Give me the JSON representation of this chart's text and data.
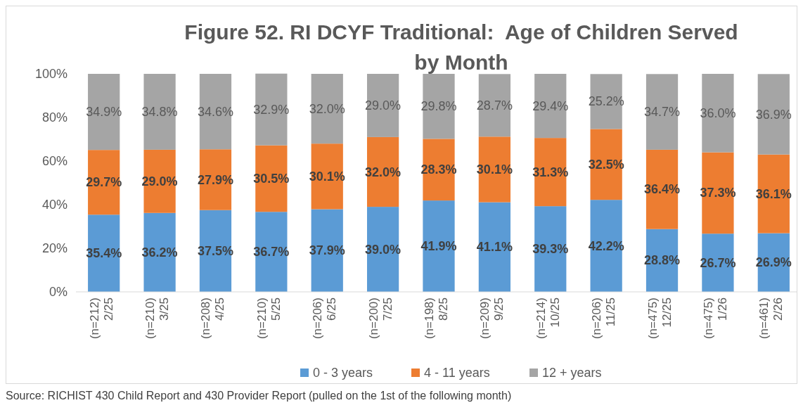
{
  "chart_data": {
    "type": "bar",
    "stacked": true,
    "title": "Figure 52. RI DCYF Traditional:  Age of Children Served by Month",
    "categories": [
      "(n=212) 2/25",
      "(n=210) 3/25",
      "(n=208) 4/25",
      "(n=210) 5/25",
      "(n=206) 6/25",
      "(n=200) 7/25",
      "(n=198) 8/25",
      "(n=209) 9/25",
      "(n=214) 10/25",
      "(n=206) 11/25",
      "(n=475) 12/25",
      "(n=475) 1/26",
      "(n=461) 2/26"
    ],
    "series": [
      {
        "name": "0 - 3 years",
        "color": "#5b9bd5",
        "values": [
          35.4,
          36.2,
          37.5,
          36.7,
          37.9,
          39.0,
          41.9,
          41.1,
          39.3,
          42.2,
          28.8,
          26.7,
          26.9
        ],
        "value_labels": [
          "35.4%",
          "36.2%",
          "37.5%",
          "36.7%",
          "37.9%",
          "39.0%",
          "41.9%",
          "41.1%",
          "39.3%",
          "42.2%",
          "28.8%",
          "26.7%",
          "26.9%"
        ]
      },
      {
        "name": "4 - 11 years",
        "color": "#ed7d31",
        "values": [
          29.7,
          29.0,
          27.9,
          30.5,
          30.1,
          32.0,
          28.3,
          30.1,
          31.3,
          32.5,
          36.4,
          37.3,
          36.1
        ],
        "value_labels": [
          "29.7%",
          "29.0%",
          "27.9%",
          "30.5%",
          "30.1%",
          "32.0%",
          "28.3%",
          "30.1%",
          "31.3%",
          "32.5%",
          "36.4%",
          "37.3%",
          "36.1%"
        ]
      },
      {
        "name": "12 + years",
        "color": "#a5a5a5",
        "values": [
          34.9,
          34.8,
          34.6,
          32.9,
          32.0,
          29.0,
          29.8,
          28.7,
          29.4,
          25.2,
          34.7,
          36.0,
          36.9
        ],
        "value_labels": [
          "34.9%",
          "34.8%",
          "34.6%",
          "32.9%",
          "32.0%",
          "29.0%",
          "29.8%",
          "28.7%",
          "29.4%",
          "25.2%",
          "34.7%",
          "36.0%",
          "36.9%"
        ]
      }
    ],
    "ylim": [
      0,
      100
    ],
    "yticks": [
      {
        "value": 0,
        "label": "0%"
      },
      {
        "value": 20,
        "label": "20%"
      },
      {
        "value": 40,
        "label": "40%"
      },
      {
        "value": 60,
        "label": "60%"
      },
      {
        "value": 80,
        "label": "80%"
      },
      {
        "value": 100,
        "label": "100%"
      }
    ],
    "legend": "bottom",
    "annotations": [
      "Source: RICHIST 430 Child Report and 430 Provider Report (pulled on the 1st of the following month)"
    ]
  }
}
